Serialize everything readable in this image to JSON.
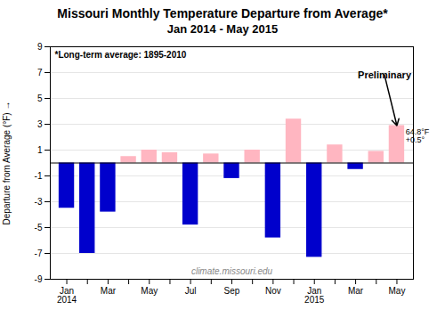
{
  "chart_data": {
    "type": "bar",
    "title": "Missouri Monthly Temperature Departure from Average*",
    "subtitle": "Jan 2014 - May 2015",
    "ylabel": "Departure from Average (°F)",
    "categories": [
      "Jan\n2014",
      null,
      "Mar",
      null,
      "May",
      null,
      "Jul",
      null,
      "Sep",
      null,
      "Nov",
      null,
      "Jan\n2015",
      null,
      "Mar",
      null,
      "May"
    ],
    "values": [
      -3.5,
      -7.0,
      -3.8,
      0.5,
      1.0,
      0.8,
      -4.8,
      0.7,
      -1.2,
      1.0,
      -5.8,
      3.4,
      -7.3,
      1.4,
      -0.5,
      0.9,
      2.9
    ],
    "colors": [
      "#0000CC",
      "#0000CC",
      "#0000CC",
      "#FFB6C1",
      "#FFB6C1",
      "#FFB6C1",
      "#0000CC",
      "#FFB6C1",
      "#0000CC",
      "#FFB6C1",
      "#0000CC",
      "#FFB6C1",
      "#0000CC",
      "#FFB6C1",
      "#0000CC",
      "#FFB6C1",
      "#FFB6C1"
    ],
    "ylim": [
      -9,
      9
    ],
    "yticks": [
      -9,
      -7,
      -5,
      -3,
      -1,
      1,
      3,
      5,
      7,
      9
    ],
    "grid": true,
    "footnote": "*Long-term average: 1895-2010",
    "watermark": "climate.missouri.edu",
    "annotations": [
      "Preliminary",
      "64.8°F\n+0.5°"
    ]
  }
}
